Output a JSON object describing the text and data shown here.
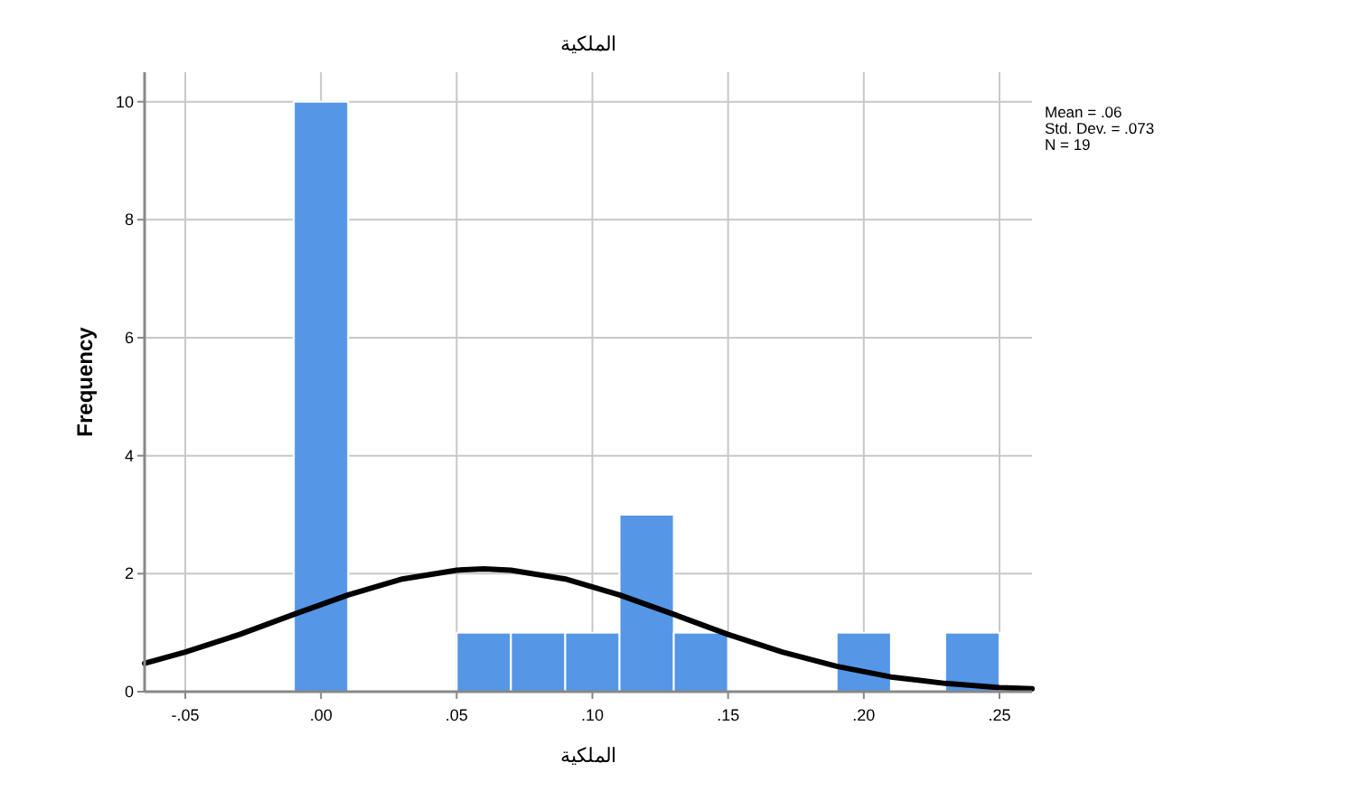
{
  "chart_data": {
    "type": "histogram",
    "title": "الملكية",
    "xlabel": "الملكية",
    "ylabel": "Frequency",
    "bins": [
      -0.01,
      0.01,
      0.03,
      0.05,
      0.07,
      0.09,
      0.11,
      0.13,
      0.15,
      0.17,
      0.19,
      0.21,
      0.23,
      0.25
    ],
    "values": [
      10,
      0,
      0,
      1,
      1,
      1,
      3,
      1,
      0,
      0,
      1,
      0,
      1
    ],
    "color": "#5596e6",
    "series": [
      {
        "type": "line",
        "color": "#000000",
        "x": [
          -0.065,
          -0.05,
          -0.03,
          -0.01,
          0.01,
          0.03,
          0.05,
          0.06,
          0.07,
          0.09,
          0.11,
          0.13,
          0.15,
          0.17,
          0.19,
          0.21,
          0.23,
          0.25,
          0.262
        ],
        "values": [
          0.48,
          0.67,
          0.97,
          1.31,
          1.64,
          1.91,
          2.06,
          2.08,
          2.06,
          1.91,
          1.64,
          1.31,
          0.97,
          0.67,
          0.43,
          0.25,
          0.14,
          0.07,
          0.05
        ]
      }
    ],
    "xlim": [
      -0.065,
      0.262
    ],
    "xticks": [
      {
        "value": -0.05,
        "label": "-.05"
      },
      {
        "value": 0,
        "label": ".00"
      },
      {
        "value": 0.05,
        "label": ".05"
      },
      {
        "value": 0.1,
        "label": ".10"
      },
      {
        "value": 0.15,
        "label": ".15"
      },
      {
        "value": 0.2,
        "label": ".20"
      },
      {
        "value": 0.25,
        "label": ".25"
      }
    ],
    "ylim": [
      0,
      10.5
    ],
    "yticks": [
      0,
      2,
      4,
      6,
      8,
      10
    ],
    "grid": true,
    "annotations": [
      "Mean = .06",
      "Std. Dev. = .073",
      "N = 19"
    ]
  }
}
